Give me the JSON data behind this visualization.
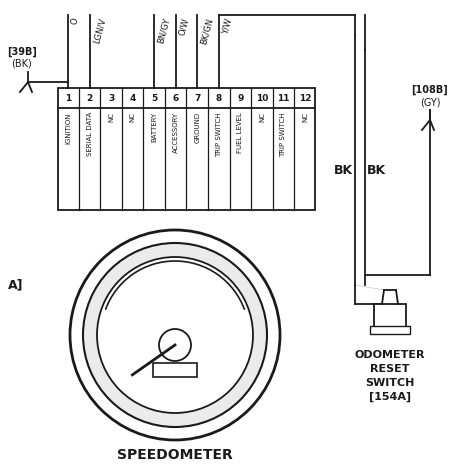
{
  "bg_color": "#ffffff",
  "line_color": "#1a1a1a",
  "title": "SPEEDOMETER",
  "connector_pins": [
    "1",
    "2",
    "3",
    "4",
    "5",
    "6",
    "7",
    "8",
    "9",
    "10",
    "11",
    "12"
  ],
  "pin_labels": [
    "IGNITION",
    "SERIAL DATA",
    "NC",
    "NC",
    "BATTERY",
    "ACCESSORY",
    "GROUND",
    "TRIP SWITCH",
    "FUEL LEVEL",
    "NC",
    "TRIP SWITCH",
    "NC"
  ],
  "wire_labels_top": [
    "O",
    "LGN/V",
    "",
    "",
    "BN/GY",
    "O/W",
    "BK/GN",
    "Y/W",
    "",
    "",
    "",
    ""
  ],
  "left_label": "[39B]",
  "left_wire": "(BK)",
  "right_label": "[108B]",
  "right_wire": "(GY)",
  "odometer_text": [
    "ODOMETER",
    "RESET",
    "SWITCH",
    "[154A]"
  ],
  "bk1": "BK",
  "bk2": "BK",
  "left_A": "A]",
  "fig_w": 4.74,
  "fig_h": 4.73,
  "dpi": 100
}
